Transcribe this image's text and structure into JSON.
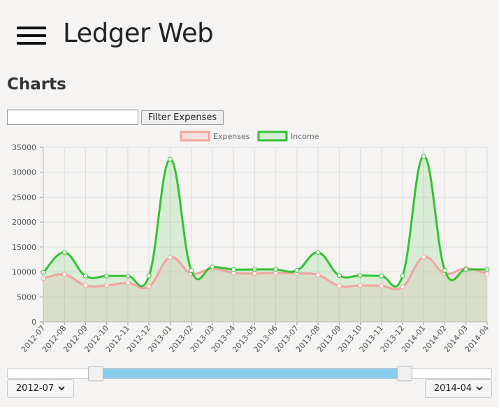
{
  "header": {
    "title": "Ledger Web",
    "menu_icon": "hamburger-menu-icon"
  },
  "page": {
    "heading": "Charts"
  },
  "filter": {
    "value": "",
    "placeholder": "",
    "button_label": "Filter Expenses"
  },
  "chart_data": {
    "type": "line",
    "title": "",
    "xlabel": "",
    "ylabel": "",
    "ylim": [
      0,
      35000
    ],
    "yticks": [
      "0",
      "5000",
      "10000",
      "15000",
      "20000",
      "25000",
      "30000",
      "35000"
    ],
    "grid": true,
    "legend_position": "top",
    "categories": [
      "2012-07",
      "2012-08",
      "2012-09",
      "2012-10",
      "2012-11",
      "2012-12",
      "2013-01",
      "2013-02",
      "2013-03",
      "2013-04",
      "2013-05",
      "2013-06",
      "2013-07",
      "2013-08",
      "2013-09",
      "2013-10",
      "2013-11",
      "2013-12",
      "2014-01",
      "2014-02",
      "2014-03",
      "2014-04"
    ],
    "series": [
      {
        "name": "Expenses",
        "color": "#f4a29e",
        "fill": "rgba(244,162,158,0.2)",
        "values": [
          8700,
          9500,
          7300,
          7300,
          7800,
          7100,
          12900,
          9700,
          10700,
          9800,
          9700,
          9800,
          9700,
          9400,
          7200,
          7300,
          7200,
          7000,
          13000,
          9700,
          10700,
          9600
        ]
      },
      {
        "name": "Income",
        "color": "#33c233",
        "fill": "rgba(51,194,51,0.15)",
        "values": [
          9900,
          13900,
          9200,
          9200,
          9200,
          9200,
          32600,
          10300,
          11000,
          10500,
          10500,
          10500,
          10300,
          13900,
          9300,
          9300,
          9200,
          9200,
          33200,
          10300,
          10500,
          10500
        ]
      }
    ]
  },
  "range": {
    "start": "2012-07",
    "end": "2014-04",
    "start_fraction": 0.18,
    "end_fraction": 0.82
  }
}
